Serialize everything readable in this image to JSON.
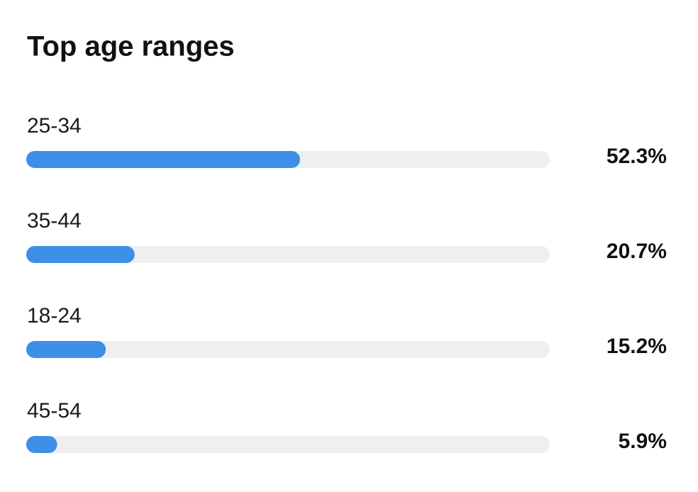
{
  "chart_data": {
    "type": "bar",
    "orientation": "horizontal",
    "title": "Top age ranges",
    "categories": [
      "25-34",
      "35-44",
      "18-24",
      "45-54"
    ],
    "values": [
      52.3,
      20.7,
      15.2,
      5.9
    ],
    "value_labels": [
      "52.3%",
      "20.7%",
      "15.2%",
      "5.9%"
    ],
    "xlim": [
      0,
      100
    ],
    "color": "#3d8fe8",
    "track_color": "#efefef"
  }
}
